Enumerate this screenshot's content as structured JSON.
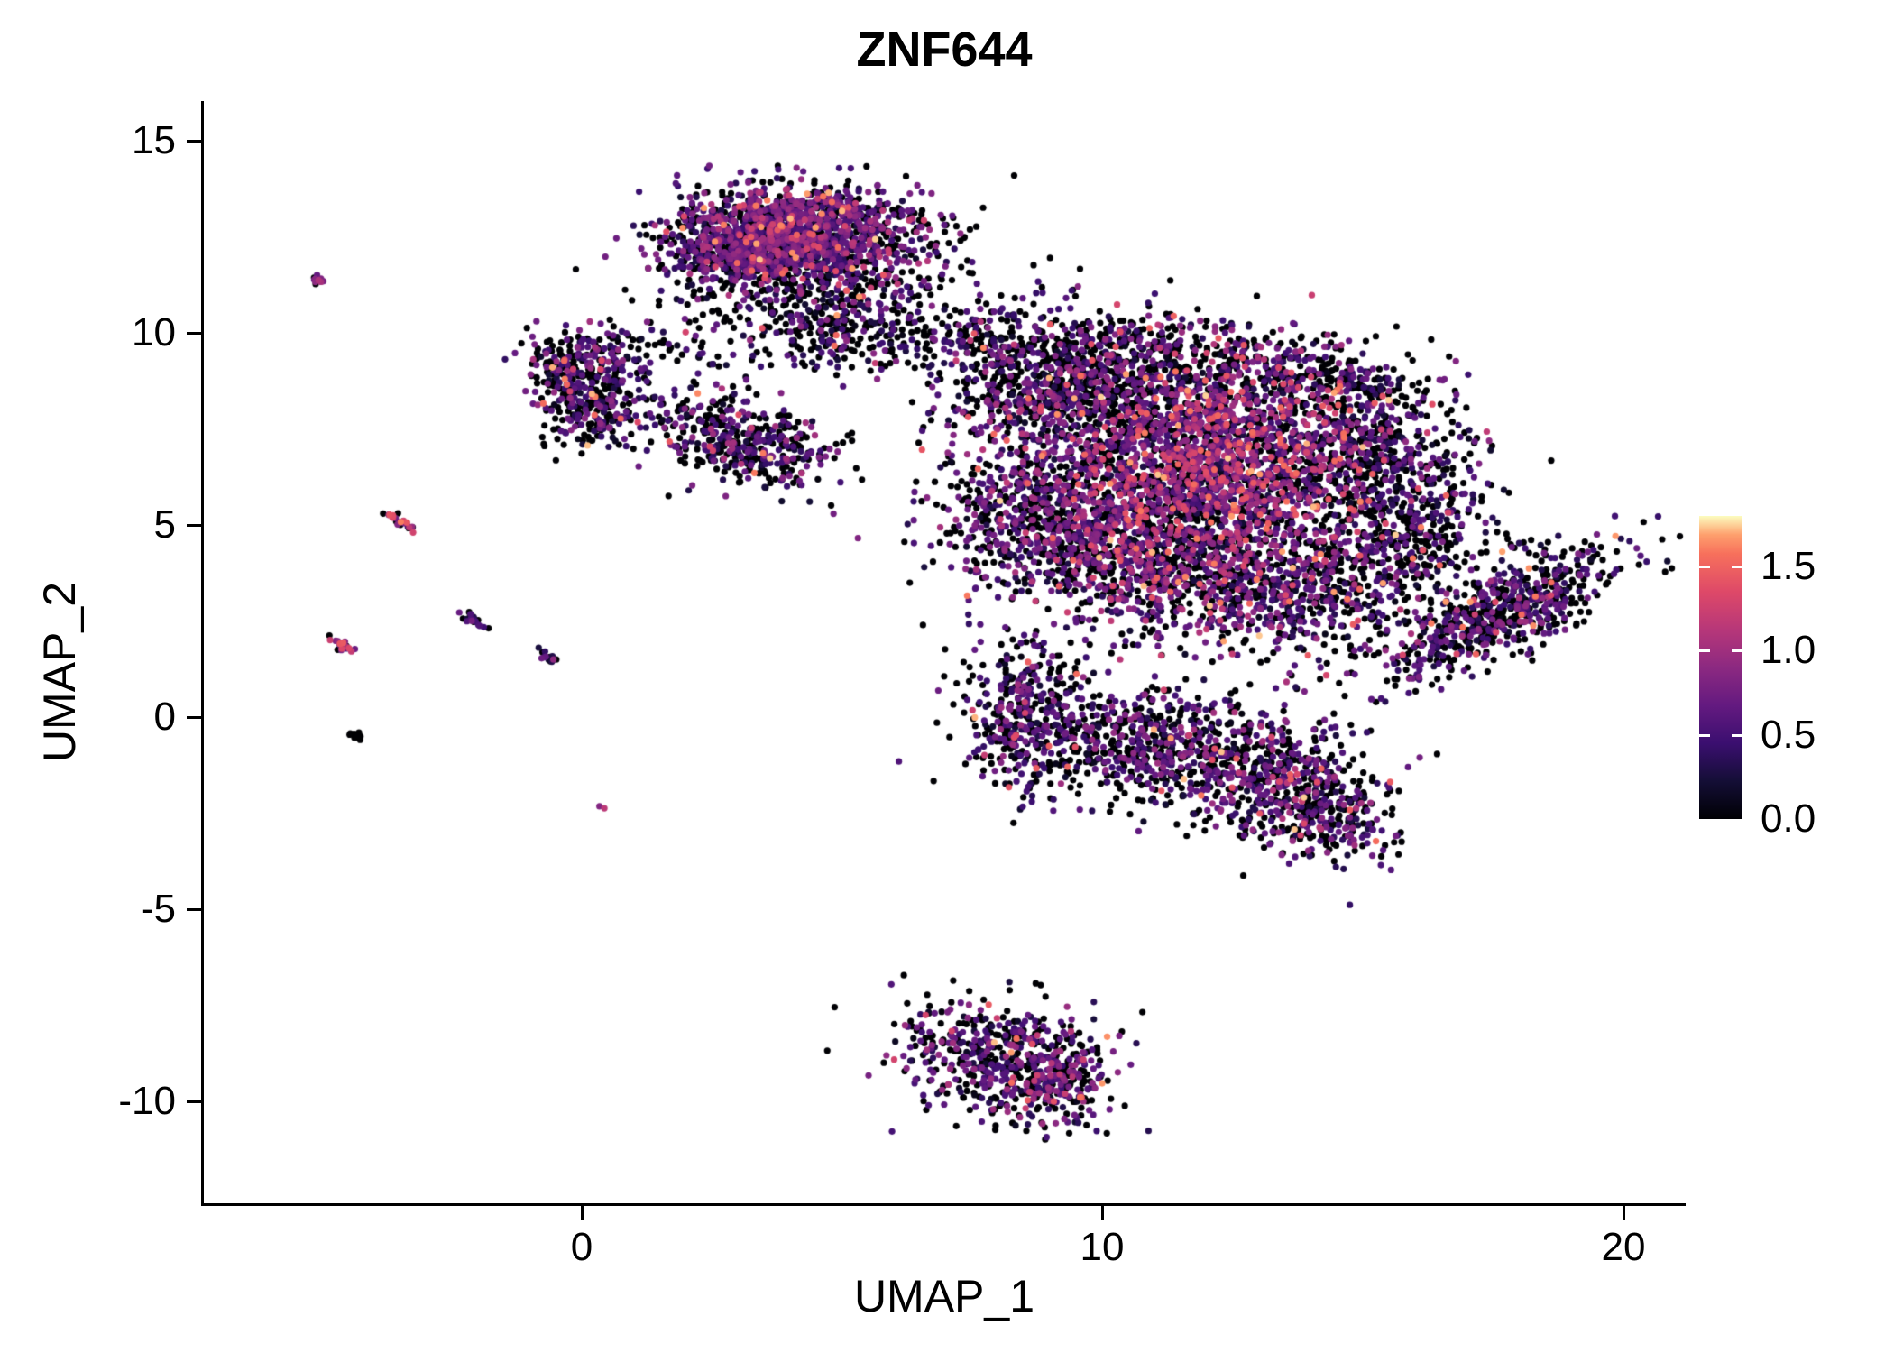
{
  "chart_data": {
    "type": "scatter",
    "title": "ZNF644",
    "xlabel": "UMAP_1",
    "ylabel": "UMAP_2",
    "xlim": [
      -7.3,
      21.2
    ],
    "ylim": [
      -12.7,
      16.0
    ],
    "grid": false,
    "x_ticks": [
      "0",
      "10",
      "20"
    ],
    "x_tick_values": [
      0,
      10,
      20
    ],
    "y_ticks": [
      "15",
      "10",
      "5",
      "0",
      "-5",
      "-10"
    ],
    "y_tick_values": [
      15,
      10,
      5,
      0,
      -5,
      -10
    ],
    "point_color_encoding": "expression level of ZNF644",
    "legend": {
      "position": "right",
      "type": "colorbar",
      "ticks": [
        "1.5",
        "1.0",
        "0.5",
        "0.0"
      ],
      "tick_values": [
        1.5,
        1.0,
        0.5,
        0.0
      ],
      "min": 0.0,
      "max": 1.8
    },
    "colormap": {
      "name": "magma",
      "max": 1.8,
      "stops": [
        [
          0.0,
          "#000004"
        ],
        [
          0.125,
          "#140e36"
        ],
        [
          0.25,
          "#3b0f70"
        ],
        [
          0.375,
          "#641a80"
        ],
        [
          0.5,
          "#8c2981"
        ],
        [
          0.625,
          "#b73779"
        ],
        [
          0.75,
          "#de4968"
        ],
        [
          0.875,
          "#f7705c"
        ],
        [
          0.9375,
          "#fe9f6d"
        ],
        [
          1.0,
          "#fcfdbf"
        ]
      ]
    },
    "clusters": [
      {
        "n": 1200,
        "cx": 4.3,
        "cy": 12.6,
        "sx": 1.05,
        "sy": 0.62,
        "rot": -8,
        "p0": 0.3,
        "m": 0.65
      },
      {
        "n": 500,
        "cx": 3.0,
        "cy": 12.1,
        "sx": 0.75,
        "sy": 0.5,
        "rot": -20,
        "p0": 0.35,
        "m": 0.6
      },
      {
        "n": 260,
        "cx": 4.2,
        "cy": 11.4,
        "sx": 1.5,
        "sy": 0.85,
        "rot": 0,
        "p0": 0.6,
        "m": 0.5
      },
      {
        "n": 90,
        "cx": 6.0,
        "cy": 12.3,
        "sx": 1.1,
        "sy": 0.8,
        "rot": 0,
        "p0": 0.65,
        "m": 0.45
      },
      {
        "n": 200,
        "cx": 4.6,
        "cy": 10.2,
        "sx": 0.8,
        "sy": 0.7,
        "rot": 0,
        "p0": 0.55,
        "m": 0.5
      },
      {
        "n": 120,
        "cx": 6.4,
        "cy": 10.0,
        "sx": 1.1,
        "sy": 0.45,
        "rot": -10,
        "p0": 0.7,
        "m": 0.45
      },
      {
        "n": 80,
        "cx": 8.0,
        "cy": 9.9,
        "sx": 0.7,
        "sy": 0.5,
        "rot": 0,
        "p0": 0.6,
        "m": 0.5
      },
      {
        "n": 60,
        "cx": 1.6,
        "cy": 9.6,
        "sx": 0.8,
        "sy": 0.5,
        "rot": 0,
        "p0": 0.7,
        "m": 0.4
      },
      {
        "n": 260,
        "cx": 0.0,
        "cy": 9.2,
        "sx": 0.6,
        "sy": 0.5,
        "rot": 0,
        "p0": 0.45,
        "m": 0.55
      },
      {
        "n": 200,
        "cx": 0.3,
        "cy": 7.9,
        "sx": 0.55,
        "sy": 0.45,
        "rot": 10,
        "p0": 0.5,
        "m": 0.5
      },
      {
        "n": 430,
        "cx": 3.05,
        "cy": 7.15,
        "sx": 0.9,
        "sy": 0.55,
        "rot": -25,
        "p0": 0.45,
        "m": 0.55
      },
      {
        "n": 900,
        "cx": 9.4,
        "cy": 8.5,
        "sx": 1.25,
        "sy": 1.0,
        "rot": 0,
        "p0": 0.5,
        "m": 0.6
      },
      {
        "n": 250,
        "cx": 10.9,
        "cy": 9.4,
        "sx": 1.2,
        "sy": 0.5,
        "rot": 0,
        "p0": 0.55,
        "m": 0.55
      },
      {
        "n": 300,
        "cx": 14.2,
        "cy": 8.7,
        "sx": 1.0,
        "sy": 0.6,
        "rot": -15,
        "p0": 0.6,
        "m": 0.5
      },
      {
        "n": 1900,
        "cx": 12.3,
        "cy": 6.7,
        "sx": 1.5,
        "sy": 1.35,
        "rot": 0,
        "p0": 0.3,
        "m": 0.8
      },
      {
        "n": 600,
        "cx": 8.7,
        "cy": 5.2,
        "sx": 1.0,
        "sy": 1.0,
        "rot": 0,
        "p0": 0.45,
        "m": 0.6
      },
      {
        "n": 1000,
        "cx": 11.0,
        "cy": 4.3,
        "sx": 1.35,
        "sy": 1.05,
        "rot": 0,
        "p0": 0.4,
        "m": 0.7
      },
      {
        "n": 600,
        "cx": 13.6,
        "cy": 3.3,
        "sx": 1.2,
        "sy": 0.9,
        "rot": 0,
        "p0": 0.45,
        "m": 0.6
      },
      {
        "n": 500,
        "cx": 15.4,
        "cy": 6.5,
        "sx": 0.85,
        "sy": 1.1,
        "rot": 0,
        "p0": 0.55,
        "m": 0.5
      },
      {
        "n": 260,
        "cx": 16.0,
        "cy": 4.4,
        "sx": 0.7,
        "sy": 0.8,
        "rot": 0,
        "p0": 0.6,
        "m": 0.5
      },
      {
        "n": 380,
        "cx": 8.5,
        "cy": 0.2,
        "sx": 0.65,
        "sy": 1.0,
        "rot": 0,
        "p0": 0.5,
        "m": 0.5
      },
      {
        "n": 450,
        "cx": 10.6,
        "cy": -0.6,
        "sx": 1.15,
        "sy": 0.7,
        "rot": 0,
        "p0": 0.5,
        "m": 0.55
      },
      {
        "n": 550,
        "cx": 12.9,
        "cy": -1.4,
        "sx": 1.2,
        "sy": 0.75,
        "rot": -15,
        "p0": 0.45,
        "m": 0.6
      },
      {
        "n": 230,
        "cx": 14.3,
        "cy": -2.6,
        "sx": 0.7,
        "sy": 0.6,
        "rot": -30,
        "p0": 0.5,
        "m": 0.6
      },
      {
        "n": 650,
        "cx": 17.6,
        "cy": 2.7,
        "sx": 1.35,
        "sy": 0.48,
        "rot": 35,
        "p0": 0.5,
        "m": 0.55
      },
      {
        "n": 500,
        "cx": 8.0,
        "cy": -8.9,
        "sx": 1.0,
        "sy": 0.75,
        "rot": -25,
        "p0": 0.45,
        "m": 0.55
      },
      {
        "n": 200,
        "cx": 9.1,
        "cy": -9.4,
        "sx": 0.5,
        "sy": 0.55,
        "rot": -30,
        "p0": 0.35,
        "m": 0.65
      },
      {
        "n": 14,
        "cx": -5.1,
        "cy": 11.4,
        "sx": 0.09,
        "sy": 0.06,
        "rot": -30,
        "p0": 0.2,
        "m": 0.8
      },
      {
        "n": 26,
        "cx": -3.5,
        "cy": 5.1,
        "sx": 0.2,
        "sy": 0.05,
        "rot": -40,
        "p0": 0.15,
        "m": 0.95
      },
      {
        "n": 22,
        "cx": -4.55,
        "cy": 1.8,
        "sx": 0.17,
        "sy": 0.05,
        "rot": -40,
        "p0": 0.2,
        "m": 0.9
      },
      {
        "n": 20,
        "cx": -2.1,
        "cy": 2.55,
        "sx": 0.15,
        "sy": 0.05,
        "rot": -40,
        "p0": 0.3,
        "m": 0.6
      },
      {
        "n": 18,
        "cx": -0.6,
        "cy": 1.5,
        "sx": 0.15,
        "sy": 0.05,
        "rot": -40,
        "p0": 0.4,
        "m": 0.5
      },
      {
        "n": 12,
        "cx": -4.35,
        "cy": -0.5,
        "sx": 0.1,
        "sy": 0.04,
        "rot": -30,
        "p0": 0.85,
        "m": 0.3
      },
      {
        "n": 2,
        "cx": 0.45,
        "cy": -2.3,
        "sx": 0.05,
        "sy": 0.04,
        "rot": 0,
        "p0": 0.2,
        "m": 0.6
      }
    ]
  }
}
